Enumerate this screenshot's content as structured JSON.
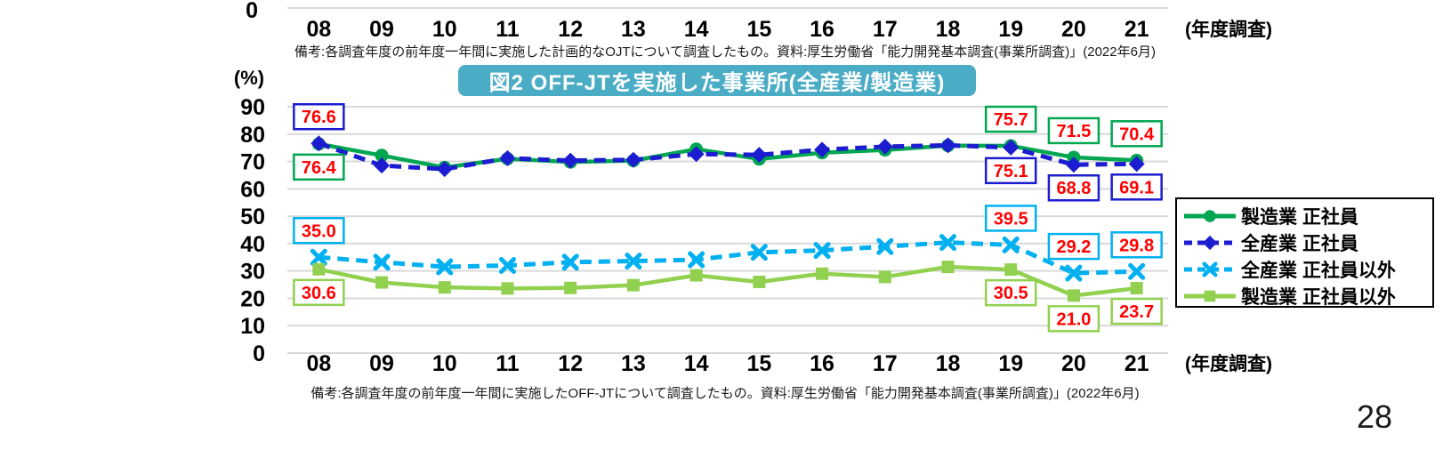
{
  "page_number": "28",
  "top_chart_remnant": {
    "zero_tick": "0",
    "axis_suffix": "(年度調査)",
    "note": "備考:各調査年度の前年度一年間に実施した計画的なOJTについて調査したもの。資料:厚生労働省「能力開発基本調査(事業所調査)」(2022年6月)"
  },
  "figure": {
    "title": "図2 OFF-JTを実施した事業所(全産業/製造業)",
    "title_bg_color": "#4BACC6",
    "title_text_color": "#FFFFFF",
    "unit_label": "(%)",
    "axis_suffix": "(年度調査)",
    "note": "備考:各調査年度の前年度一年間に実施したOFF-JTについて調査したもの。資料:厚生労働省「能力開発基本調査(事業所調査)」(2022年6月)"
  },
  "chart_data": {
    "type": "line",
    "title": "図2 OFF-JTを実施した事業所(全産業/製造業)",
    "xlabel": "(年度調査)",
    "ylabel": "(%)",
    "ylim": [
      0,
      90
    ],
    "yticks": [
      0,
      10,
      20,
      30,
      40,
      50,
      60,
      70,
      80,
      90
    ],
    "grid": true,
    "gridline_color": "#D9D9D9",
    "legend_position": "right",
    "categories": [
      "08",
      "09",
      "10",
      "11",
      "12",
      "13",
      "14",
      "15",
      "16",
      "17",
      "18",
      "19",
      "20",
      "21"
    ],
    "series": [
      {
        "name": "製造業 正社員",
        "color": "#00A650",
        "line": "solid",
        "marker": "circle",
        "values": [
          76.4,
          72.2,
          67.8,
          71.0,
          69.8,
          70.3,
          74.5,
          70.9,
          73.2,
          74.2,
          75.8,
          75.7,
          71.5,
          70.4
        ]
      },
      {
        "name": "全産業 正社員",
        "color": "#1C1CD0",
        "line": "dashed",
        "marker": "diamond",
        "values": [
          76.6,
          68.5,
          67.2,
          71.2,
          70.3,
          70.6,
          72.7,
          72.4,
          74.3,
          75.4,
          75.9,
          75.1,
          68.8,
          69.1
        ]
      },
      {
        "name": "全産業 正社員以外",
        "color": "#00B0F0",
        "line": "dashed",
        "marker": "x",
        "values": [
          35.0,
          33.2,
          31.5,
          32.0,
          33.2,
          33.6,
          34.1,
          36.8,
          37.5,
          38.9,
          40.4,
          39.5,
          29.2,
          29.8
        ]
      },
      {
        "name": "製造業 正社員以外",
        "color": "#92D050",
        "line": "solid",
        "marker": "square",
        "values": [
          30.6,
          25.8,
          24.0,
          23.6,
          23.8,
          24.8,
          28.4,
          26.0,
          29.0,
          27.8,
          31.5,
          30.5,
          21.0,
          23.7
        ]
      }
    ],
    "annotations": [
      {
        "series": 1,
        "category": "08",
        "text": "76.6",
        "side": "above"
      },
      {
        "series": 0,
        "category": "08",
        "text": "76.4",
        "side": "below"
      },
      {
        "series": 0,
        "category": "19",
        "text": "75.7",
        "side": "above"
      },
      {
        "series": 1,
        "category": "19",
        "text": "75.1",
        "side": "below"
      },
      {
        "series": 0,
        "category": "20",
        "text": "71.5",
        "side": "above"
      },
      {
        "series": 1,
        "category": "20",
        "text": "68.8",
        "side": "below"
      },
      {
        "series": 0,
        "category": "21",
        "text": "70.4",
        "side": "above"
      },
      {
        "series": 1,
        "category": "21",
        "text": "69.1",
        "side": "below"
      },
      {
        "series": 2,
        "category": "08",
        "text": "35.0",
        "side": "above"
      },
      {
        "series": 3,
        "category": "08",
        "text": "30.6",
        "side": "below"
      },
      {
        "series": 2,
        "category": "19",
        "text": "39.5",
        "side": "above"
      },
      {
        "series": 3,
        "category": "19",
        "text": "30.5",
        "side": "below"
      },
      {
        "series": 2,
        "category": "20",
        "text": "29.2",
        "side": "above"
      },
      {
        "series": 3,
        "category": "20",
        "text": "21.0",
        "side": "below"
      },
      {
        "series": 2,
        "category": "21",
        "text": "29.8",
        "side": "above"
      },
      {
        "series": 3,
        "category": "21",
        "text": "23.7",
        "side": "below"
      }
    ],
    "annotation_text_color": "#FF0000"
  }
}
